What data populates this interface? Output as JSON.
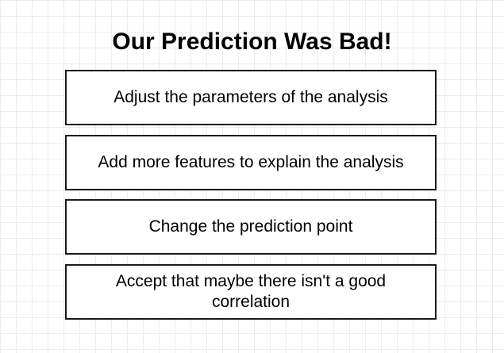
{
  "title": "Our Prediction Was Bad!",
  "options": [
    "Adjust the parameters of the analysis",
    "Add more features to explain the analysis",
    "Change the prediction point",
    "Accept that maybe there isn't a good correlation"
  ]
}
